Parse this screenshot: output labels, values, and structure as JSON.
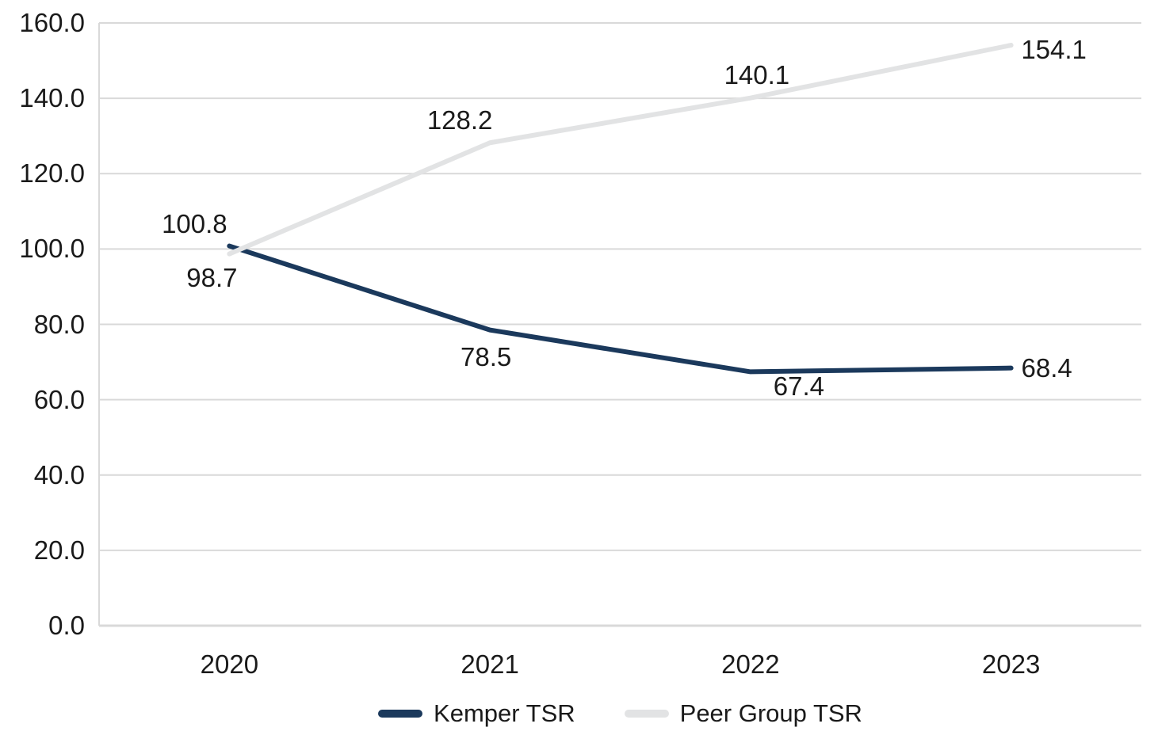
{
  "chart_data": {
    "type": "line",
    "x": [
      "2020",
      "2021",
      "2022",
      "2023"
    ],
    "series": [
      {
        "name": "Kemper TSR",
        "color": "#1b395c",
        "values": [
          100.8,
          78.5,
          67.4,
          68.4
        ],
        "point_labels": [
          "100.8",
          "78.5",
          "67.4",
          "68.4"
        ],
        "label_offsets": [
          [
            -44,
            -28
          ],
          [
            -5,
            34
          ],
          [
            61,
            19
          ],
          [
            45,
            0
          ]
        ]
      },
      {
        "name": "Peer Group TSR",
        "color": "#e2e3e4",
        "values": [
          98.7,
          128.2,
          140.1,
          154.1
        ],
        "point_labels": [
          "98.7",
          "128.2",
          "140.1",
          "154.1"
        ],
        "label_offsets": [
          [
            -22,
            30
          ],
          [
            -38,
            -28
          ],
          [
            8,
            -29
          ],
          [
            54,
            6
          ]
        ]
      }
    ],
    "title": "",
    "xlabel": "",
    "ylabel": "",
    "ylim": [
      0,
      160
    ],
    "ytick_step": 20,
    "ytick_labels": [
      "0.0",
      "20.0",
      "40.0",
      "60.0",
      "80.0",
      "100.0",
      "120.0",
      "140.0",
      "160.0"
    ],
    "grid": true,
    "gridline_color": "#d9d9d9",
    "axis_line_color": "#d9d9d9",
    "text_color": "#1a1a1a",
    "background": "#ffffff",
    "legend_position": "bottom"
  }
}
